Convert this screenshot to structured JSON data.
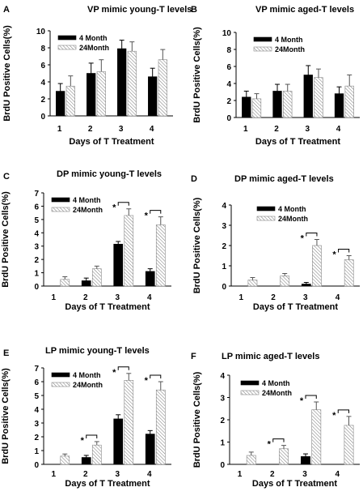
{
  "chart_data": [
    {
      "letter": "A",
      "type": "bar",
      "title": "VP mimic young-T levels",
      "xlabel": "Days of T Treatment",
      "ylabel": "BrdU Positive Cells(%)",
      "categories": [
        "1",
        "2",
        "3",
        "4"
      ],
      "ylim": [
        0,
        10
      ],
      "yticks": [
        "0",
        "2",
        "4",
        "6",
        "8",
        "10"
      ],
      "series": [
        {
          "name": "4 Month",
          "values": [
            2.9,
            5.0,
            7.9,
            4.6
          ],
          "errors": [
            0.9,
            1.2,
            1.0,
            1.0
          ]
        },
        {
          "name": "24Month",
          "values": [
            3.5,
            5.2,
            7.6,
            6.6
          ],
          "errors": [
            1.2,
            1.4,
            1.1,
            1.2
          ]
        }
      ],
      "significance": []
    },
    {
      "letter": "B",
      "type": "bar",
      "title": "VP mimic aged-T levels",
      "xlabel": "Days of T Treatment",
      "ylabel": "BrdU Positive Cells(%)",
      "categories": [
        "1",
        "2",
        "3",
        "4"
      ],
      "ylim": [
        0,
        10
      ],
      "yticks": [
        "0",
        "2",
        "4",
        "6",
        "8",
        "10"
      ],
      "series": [
        {
          "name": "4 Month",
          "values": [
            2.4,
            3.1,
            5.0,
            2.8
          ],
          "errors": [
            0.7,
            0.8,
            1.1,
            0.8
          ]
        },
        {
          "name": "24Month",
          "values": [
            2.2,
            3.1,
            4.7,
            3.7
          ],
          "errors": [
            0.6,
            0.8,
            1.0,
            1.3
          ]
        }
      ],
      "significance": []
    },
    {
      "letter": "C",
      "type": "bar",
      "title": "DP mimic young-T levels",
      "xlabel": "Days of T Treatment",
      "ylabel": "BrdU Positive Cells(%)",
      "categories": [
        "1",
        "2",
        "3",
        "4"
      ],
      "ylim": [
        0,
        7
      ],
      "yticks": [
        "0",
        "1",
        "2",
        "3",
        "4",
        "5",
        "6",
        "7"
      ],
      "series": [
        {
          "name": "4 Month",
          "values": [
            0.0,
            0.4,
            3.15,
            1.1
          ],
          "errors": [
            0,
            0.2,
            0.2,
            0.2
          ]
        },
        {
          "name": "24Month",
          "values": [
            0.5,
            1.3,
            5.3,
            4.6
          ],
          "errors": [
            0.2,
            0.2,
            0.5,
            0.6
          ]
        }
      ],
      "significance": [
        {
          "category": "3",
          "label": "*"
        },
        {
          "category": "4",
          "label": "*"
        }
      ]
    },
    {
      "letter": "D",
      "type": "bar",
      "title": "DP mimic aged-T levels",
      "xlabel": "Days of T Treatment",
      "ylabel": "BrdU Positive Cells(%)",
      "categories": [
        "1",
        "2",
        "3",
        "4"
      ],
      "ylim": [
        0,
        4
      ],
      "yticks": [
        "0",
        "1",
        "2",
        "3",
        "4"
      ],
      "series": [
        {
          "name": "4 Month",
          "values": [
            0.0,
            0.0,
            0.1,
            0.0
          ],
          "errors": [
            0,
            0,
            0.08,
            0
          ]
        },
        {
          "name": "24Month",
          "values": [
            0.3,
            0.5,
            2.0,
            1.3
          ],
          "errors": [
            0.12,
            0.12,
            0.3,
            0.2
          ]
        }
      ],
      "significance": [
        {
          "category": "3",
          "label": "*"
        },
        {
          "category": "4",
          "label": "*"
        }
      ]
    },
    {
      "letter": "E",
      "type": "bar",
      "title": "LP mimic young-T levels",
      "xlabel": "Days of T Treatment",
      "ylabel": "BrdU Positive Cells(%)",
      "categories": [
        "1",
        "2",
        "3",
        "4"
      ],
      "ylim": [
        0,
        7
      ],
      "yticks": [
        "0",
        "1",
        "2",
        "3",
        "4",
        "5",
        "6",
        "7"
      ],
      "series": [
        {
          "name": "4 Month",
          "values": [
            0.0,
            0.5,
            3.3,
            2.2
          ],
          "errors": [
            0,
            0.15,
            0.3,
            0.25
          ]
        },
        {
          "name": "24Month",
          "values": [
            0.6,
            1.4,
            6.1,
            5.4
          ],
          "errors": [
            0.15,
            0.25,
            0.5,
            0.6
          ]
        }
      ],
      "significance": [
        {
          "category": "2",
          "label": "*"
        },
        {
          "category": "3",
          "label": "*"
        },
        {
          "category": "4",
          "label": "*"
        }
      ]
    },
    {
      "letter": "F",
      "type": "bar",
      "title": "LP mimic aged-T levels",
      "xlabel": "Days of T Treatment",
      "ylabel": "BrdU Positive Cells(%)",
      "categories": [
        "1",
        "2",
        "3",
        "4"
      ],
      "ylim": [
        0,
        4
      ],
      "yticks": [
        "0",
        "1",
        "2",
        "3",
        "4"
      ],
      "series": [
        {
          "name": "4 Month",
          "values": [
            0.0,
            0.0,
            0.35,
            0.0
          ],
          "errors": [
            0,
            0,
            0.12,
            0
          ]
        },
        {
          "name": "24Month",
          "values": [
            0.4,
            0.7,
            2.45,
            1.75
          ],
          "errors": [
            0.15,
            0.15,
            0.35,
            0.4
          ]
        }
      ],
      "significance": [
        {
          "category": "2",
          "label": "*"
        },
        {
          "category": "3",
          "label": "*"
        },
        {
          "category": "4",
          "label": "*"
        }
      ]
    }
  ]
}
